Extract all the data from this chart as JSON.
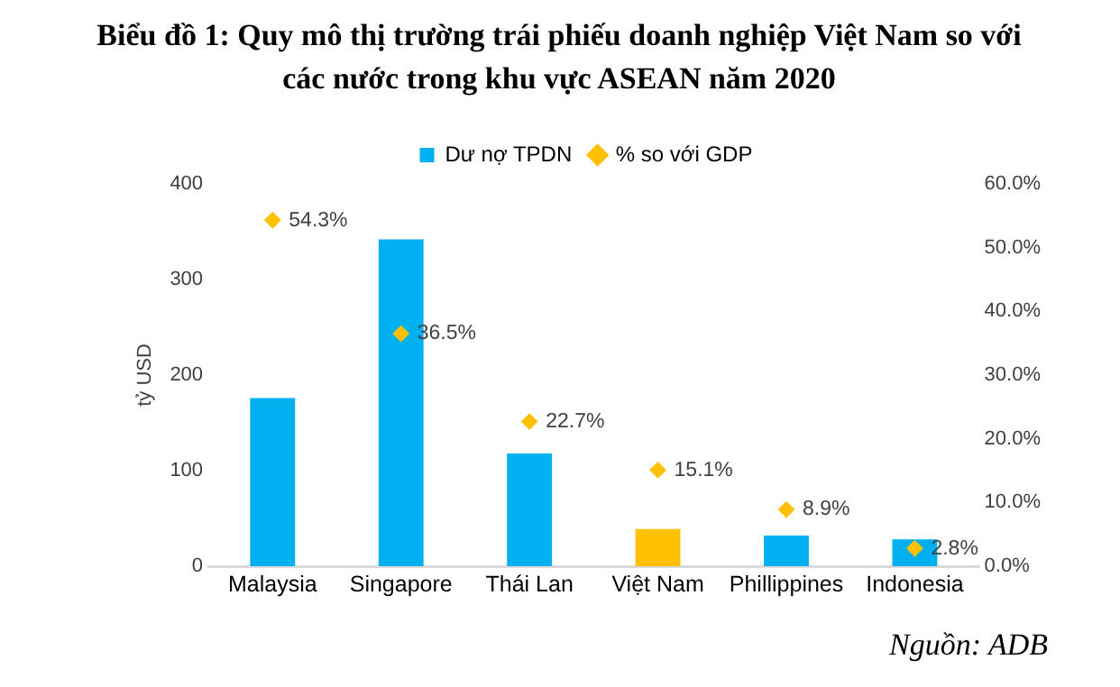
{
  "chart_data": {
    "type": "bar",
    "title": "Biểu đồ 1: Quy mô thị trường trái phiếu doanh nghiệp Việt Nam so với các nước trong khu vực ASEAN năm 2020",
    "ylabel": "tỷ USD",
    "categories": [
      "Malaysia",
      "Singapore",
      "Thái Lan",
      "Việt Nam",
      "Phillippines",
      "Indonesia"
    ],
    "series": [
      {
        "name": "Dư nợ TPDN",
        "color": "#00b0f0",
        "colors": [
          "#00b0f0",
          "#00b0f0",
          "#00b0f0",
          "#ffc000",
          "#00b0f0",
          "#00b0f0"
        ],
        "values": [
          176,
          342,
          118,
          39,
          32,
          28
        ]
      },
      {
        "name": "% so với GDP",
        "type": "scatter",
        "axis": "y2",
        "color": "#ffc000",
        "x": [
          "Malaysia",
          "Singapore",
          "Thái Lan",
          "Việt Nam",
          "Phillippines",
          "Indonesia"
        ],
        "values": [
          54.3,
          36.5,
          22.7,
          15.1,
          8.9,
          2.8
        ],
        "value_labels": [
          "54.3%",
          "36.5%",
          "22.7%",
          "15.1%",
          "8.9%",
          "2.8%"
        ]
      }
    ],
    "ylim": [
      0,
      400
    ],
    "yticks": [
      0,
      100,
      200,
      300,
      400
    ],
    "y2lim": [
      0,
      60
    ],
    "y2ticks": [
      {
        "value": 0,
        "label": "0.0%"
      },
      {
        "value": 10,
        "label": "10.0%"
      },
      {
        "value": 20,
        "label": "20.0%"
      },
      {
        "value": 30,
        "label": "30.0%"
      },
      {
        "value": 40,
        "label": "40.0%"
      },
      {
        "value": 50,
        "label": "50.0%"
      },
      {
        "value": 60,
        "label": "60.0%"
      }
    ],
    "legend": "top",
    "marker": "diamond",
    "grid": false,
    "annotations": [
      "Nguồn: ADB"
    ]
  }
}
